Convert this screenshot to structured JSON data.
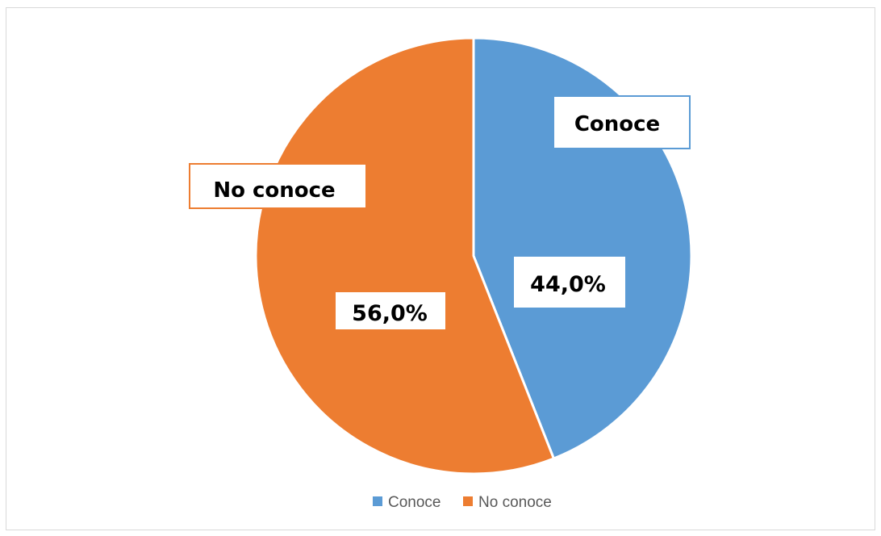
{
  "chart_data": {
    "type": "pie",
    "title": "",
    "slices": [
      {
        "name": "Conoce",
        "value": 44.0,
        "label": "44,0%",
        "color": "#5b9bd5"
      },
      {
        "name": "No conoce",
        "value": 56.0,
        "label": "56,0%",
        "color": "#ed7d31"
      }
    ],
    "start_angle_deg": 0,
    "direction": "clockwise",
    "legend_position": "bottom",
    "data_labels": "category name and percentage in white boxes"
  }
}
